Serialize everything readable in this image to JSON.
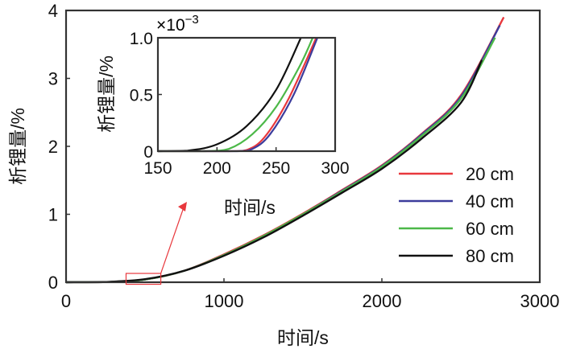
{
  "chart_data": [
    {
      "type": "line",
      "xlabel": "时间/s",
      "ylabel": "析锂量/%",
      "xlim": [
        0,
        3000
      ],
      "ylim": [
        0,
        4
      ],
      "xticks": [
        "0",
        "1000",
        "2000",
        "3000"
      ],
      "yticks": [
        "0",
        "1",
        "2",
        "3",
        "4"
      ],
      "legend_position": "bottom-right",
      "series": [
        {
          "name": "20 cm",
          "color": "#e8383d",
          "x": [
            0,
            250,
            500,
            750,
            1000,
            1250,
            1500,
            1750,
            2000,
            2250,
            2500,
            2772
          ],
          "y": [
            0,
            0.003,
            0.04,
            0.17,
            0.41,
            0.69,
            1.01,
            1.36,
            1.72,
            2.18,
            2.75,
            3.9
          ]
        },
        {
          "name": "40 cm",
          "color": "#3c3c9c",
          "x": [
            0,
            250,
            500,
            750,
            1000,
            1250,
            1500,
            1750,
            2000,
            2250,
            2500,
            2747
          ],
          "y": [
            0,
            0.003,
            0.04,
            0.17,
            0.4,
            0.68,
            1.0,
            1.35,
            1.71,
            2.17,
            2.73,
            3.78
          ]
        },
        {
          "name": "60 cm",
          "color": "#4cb848",
          "x": [
            0,
            250,
            500,
            750,
            1000,
            1250,
            1500,
            1750,
            2000,
            2250,
            2500,
            2717
          ],
          "y": [
            0,
            0.003,
            0.04,
            0.17,
            0.4,
            0.68,
            1.0,
            1.34,
            1.7,
            2.15,
            2.7,
            3.6
          ]
        },
        {
          "name": "80 cm",
          "color": "#111111",
          "x": [
            0,
            250,
            500,
            750,
            1000,
            1250,
            1500,
            1750,
            2000,
            2250,
            2500,
            2633
          ],
          "y": [
            0,
            0.004,
            0.045,
            0.17,
            0.39,
            0.66,
            0.98,
            1.32,
            1.67,
            2.11,
            2.64,
            3.27
          ]
        }
      ],
      "zoom_box": {
        "x": [
          380,
          600
        ],
        "y": [
          -0.03,
          0.13
        ]
      }
    },
    {
      "type": "line",
      "role": "inset",
      "xlabel": "时间/s",
      "ylabel": "析锂量/%",
      "scale_label": "×10",
      "scale_exponent": "−3",
      "xlim": [
        150,
        300
      ],
      "ylim": [
        0,
        1.0
      ],
      "xticks": [
        "150",
        "200",
        "250",
        "300"
      ],
      "yticks": [
        "0",
        "0.5",
        "1.0"
      ],
      "series": [
        {
          "name": "20 cm",
          "color": "#e8383d",
          "x": [
            150,
            210,
            225,
            240,
            260,
            284
          ],
          "y": [
            0,
            0,
            0.01,
            0.12,
            0.45,
            1.0
          ]
        },
        {
          "name": "40 cm",
          "color": "#3c3c9c",
          "x": [
            150,
            215,
            230,
            245,
            265,
            285
          ],
          "y": [
            0,
            0,
            0.02,
            0.15,
            0.5,
            1.0
          ]
        },
        {
          "name": "60 cm",
          "color": "#4cb848",
          "x": [
            150,
            190,
            210,
            230,
            250,
            270,
            281
          ],
          "y": [
            0,
            0,
            0.02,
            0.15,
            0.39,
            0.75,
            1.0
          ]
        },
        {
          "name": "80 cm",
          "color": "#111111",
          "x": [
            150,
            175,
            200,
            225,
            250,
            271
          ],
          "y": [
            0,
            0.005,
            0.06,
            0.22,
            0.54,
            1.0
          ]
        }
      ]
    }
  ]
}
